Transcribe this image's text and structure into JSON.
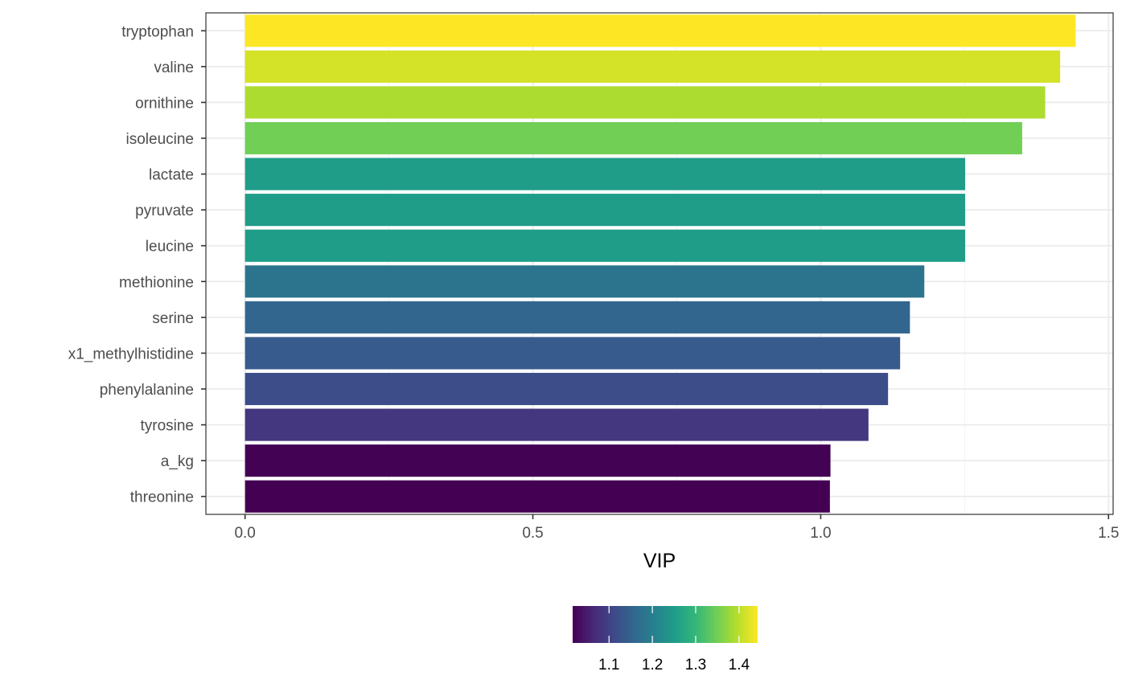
{
  "chart_data": {
    "type": "bar",
    "orientation": "horizontal",
    "categories": [
      "tryptophan",
      "valine",
      "ornithine",
      "isoleucine",
      "lactate",
      "pyruvate",
      "leucine",
      "methionine",
      "serine",
      "x1_methylhistidine",
      "phenylalanine",
      "tyrosine",
      "a_kg",
      "threonine"
    ],
    "values": [
      1.443,
      1.416,
      1.39,
      1.35,
      1.251,
      1.251,
      1.251,
      1.18,
      1.155,
      1.138,
      1.117,
      1.083,
      1.017,
      1.016
    ],
    "xlabel": "VIP",
    "ylabel": "",
    "xlim": [
      -0.068,
      1.508
    ],
    "x_ticks": [
      0.0,
      0.5,
      1.0,
      1.5
    ],
    "x_tick_labels": [
      "0.0",
      "0.5",
      "1.0",
      "1.5"
    ],
    "grid": true,
    "color_scale": {
      "name": "viridis",
      "min": 1.016,
      "max": 1.443,
      "stops": [
        "#440154",
        "#482878",
        "#3e4989",
        "#31688e",
        "#26828e",
        "#1f9e89",
        "#35b779",
        "#6ece58",
        "#b5de2b",
        "#fde725"
      ]
    },
    "legend": {
      "placement": "bottom",
      "ticks": [
        1.1,
        1.2,
        1.3,
        1.4
      ],
      "tick_labels": [
        "1.1",
        "1.2",
        "1.3",
        "1.4"
      ]
    }
  }
}
